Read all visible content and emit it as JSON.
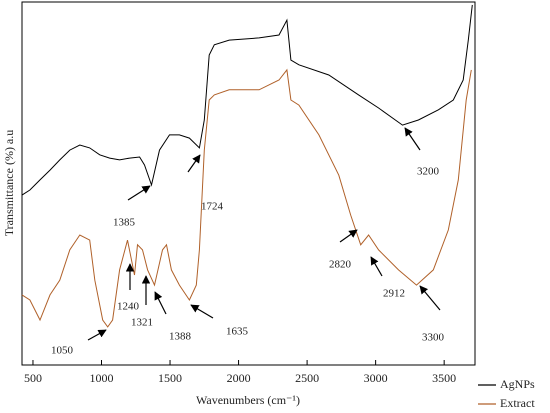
{
  "chart_data": {
    "type": "line",
    "xlabel": "Wavenumbers (cm⁻¹)",
    "ylabel": "Transmittance (%) a.u",
    "xlim": [
      420,
      3725
    ],
    "ylim": [
      0,
      100
    ],
    "xticks": [
      500,
      1000,
      1500,
      2000,
      2500,
      3000,
      3500
    ],
    "legend": "lower right",
    "series": [
      {
        "name": "AgNPs",
        "color": "#000000",
        "x": [
          420,
          478,
          551,
          624,
          696,
          769,
          842,
          914,
          987,
          1060,
          1132,
          1205,
          1278,
          1314,
          1365,
          1423,
          1496,
          1568,
          1641,
          1714,
          1750,
          1786,
          1823,
          1932,
          2150,
          2295,
          2353,
          2382,
          2440,
          2658,
          2876,
          3022,
          3196,
          3312,
          3458,
          3567,
          3639,
          3676,
          3705
        ],
        "values": [
          46.8,
          48.2,
          51.0,
          53.7,
          56.5,
          59.2,
          60.6,
          59.8,
          57.9,
          57.0,
          56.5,
          57.0,
          57.3,
          55.1,
          49.6,
          59.2,
          63.4,
          63.4,
          62.5,
          59.8,
          67.5,
          85.4,
          88.2,
          89.5,
          90.1,
          90.9,
          95.0,
          84.0,
          82.7,
          79.9,
          74.4,
          70.8,
          66.1,
          67.5,
          70.3,
          73.0,
          78.5,
          89.5,
          99.2
        ]
      },
      {
        "name": "Extract",
        "color": "#b0612a",
        "x": [
          420,
          478,
          551,
          624,
          696,
          769,
          842,
          914,
          951,
          1009,
          1045,
          1081,
          1132,
          1190,
          1241,
          1263,
          1299,
          1336,
          1387,
          1445,
          1474,
          1510,
          1568,
          1641,
          1692,
          1714,
          1750,
          1786,
          1823,
          1932,
          2150,
          2295,
          2353,
          2382,
          2440,
          2586,
          2731,
          2818,
          2891,
          2949,
          3022,
          3167,
          3298,
          3421,
          3530,
          3603,
          3661,
          3698
        ],
        "values": [
          19.3,
          17.9,
          12.4,
          19.3,
          23.4,
          31.7,
          35.8,
          34.4,
          23.4,
          12.4,
          10.5,
          12.4,
          26.2,
          34.4,
          24.8,
          33.1,
          31.7,
          26.2,
          22.0,
          31.7,
          33.1,
          26.2,
          22.0,
          17.9,
          22.0,
          31.7,
          59.2,
          73.0,
          74.4,
          75.8,
          75.8,
          78.5,
          81.3,
          73.0,
          71.6,
          63.4,
          52.3,
          41.3,
          33.1,
          35.8,
          31.7,
          26.2,
          22.0,
          26.2,
          37.2,
          51.0,
          73.0,
          81.3
        ]
      }
    ],
    "annotations": [
      "1385",
      "1724",
      "1050",
      "1240",
      "1321",
      "1388",
      "1635",
      "2820",
      "2912",
      "3300",
      "3200"
    ]
  }
}
